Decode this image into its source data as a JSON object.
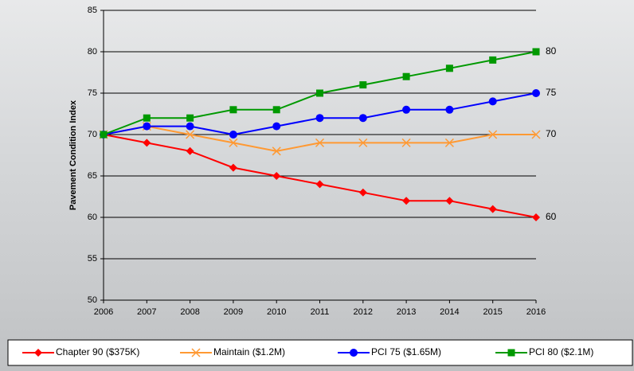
{
  "chart_data": {
    "type": "line",
    "y_label": "Pavement Condition Index",
    "x": [
      2006,
      2007,
      2008,
      2009,
      2010,
      2011,
      2012,
      2013,
      2014,
      2015,
      2016
    ],
    "xlim": [
      2006,
      2016
    ],
    "xticks": [
      2006,
      2007,
      2008,
      2009,
      2010,
      2011,
      2012,
      2013,
      2014,
      2015,
      2016
    ],
    "ylim": [
      50,
      85
    ],
    "yticks": [
      50,
      55,
      60,
      65,
      70,
      75,
      80,
      85
    ],
    "grid": true,
    "legend": "bottom",
    "series": [
      {
        "name": "Chapter 90 ($375K)",
        "color": "#ff0000",
        "marker": "diamond",
        "values": [
          70,
          69,
          68,
          66,
          65,
          64,
          63,
          62,
          62,
          61,
          60
        ]
      },
      {
        "name": "Maintain ($1.2M)",
        "color": "#ff9933",
        "marker": "x",
        "values": [
          70,
          71,
          70,
          69,
          68,
          69,
          69,
          69,
          69,
          70,
          70
        ]
      },
      {
        "name": "PCI 75 ($1.65M)",
        "color": "#0000ff",
        "marker": "circle",
        "values": [
          70,
          71,
          71,
          70,
          71,
          72,
          72,
          73,
          73,
          74,
          75
        ]
      },
      {
        "name": "PCI 80 ($2.1M)",
        "color": "#009900",
        "marker": "square",
        "values": [
          70,
          72,
          72,
          73,
          73,
          75,
          76,
          77,
          78,
          79,
          80
        ]
      }
    ]
  }
}
